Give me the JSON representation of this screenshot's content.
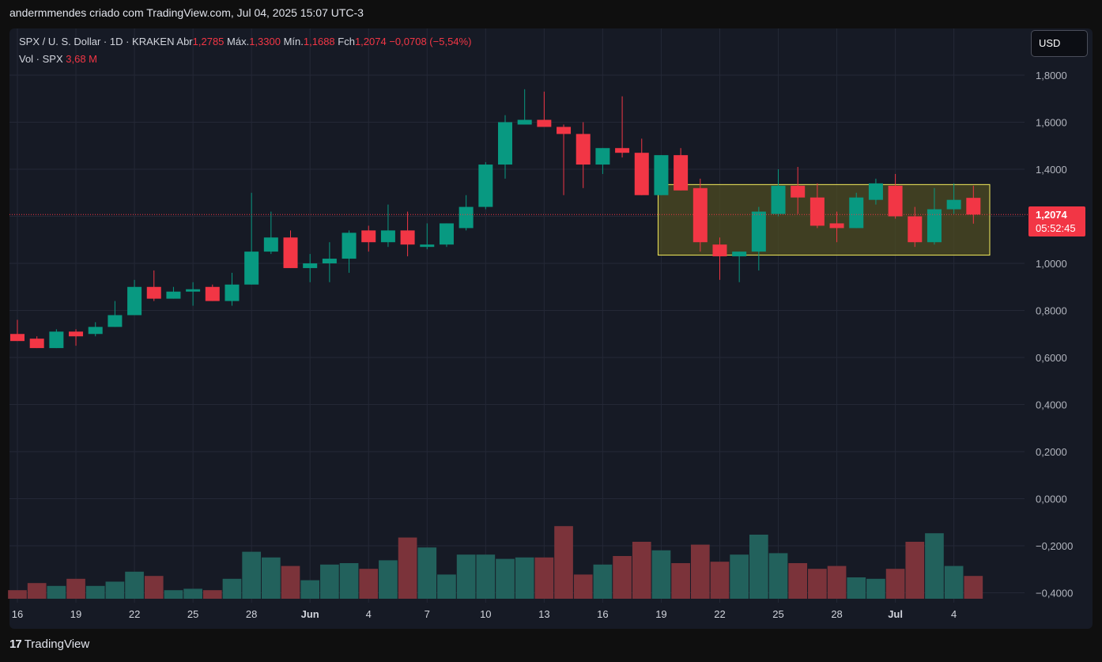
{
  "header": {
    "text": "andermmendes criado com TradingView.com, Jul 04, 2025 15:07 UTC-3"
  },
  "legend": {
    "symbol": "SPX / U. S. Dollar · 1D · KRAKEN",
    "open_label": "Abr",
    "open": "1,2785",
    "high_label": "Máx.",
    "high": "1,3300",
    "low_label": "Mín.",
    "low": "1,1688",
    "close_label": "Fch",
    "close": "1,2074",
    "change": "−0,0708 (−5,54%)",
    "vol_label": "Vol · SPX",
    "vol": "3,68 M"
  },
  "currency_button": "USD",
  "last_price": {
    "price": "1,2074",
    "countdown": "05:52:45"
  },
  "footer": {
    "logo": "17",
    "brand": "TradingView"
  },
  "colors": {
    "up": "#089981",
    "down": "#f23645",
    "vol_up": "#22615c",
    "vol_down": "#7b333a",
    "range_fill": "#4d4b22",
    "range_border": "#f5ed5c",
    "bg": "#161a25",
    "page": "#0f0f0f"
  },
  "chart_data": {
    "type": "candlestick",
    "x_tick_labels": [
      "16",
      "19",
      "22",
      "25",
      "28",
      "Jun",
      "4",
      "7",
      "10",
      "13",
      "16",
      "19",
      "22",
      "25",
      "28",
      "Jul",
      "4"
    ],
    "y_tick_labels": [
      "1,8000",
      "1,6000",
      "1,4000",
      "1,2000",
      "1,0000",
      "0,8000",
      "0,6000",
      "0,4000",
      "0,2000",
      "0,0000",
      "−0,2000",
      "−0,4000"
    ],
    "ylim": [
      -0.44,
      1.92
    ],
    "grid": true,
    "highlight_range": {
      "y_low": 1.035,
      "y_high": 1.335,
      "from_index": 33,
      "to_index": 50
    },
    "candles": [
      {
        "o": 0.7,
        "h": 0.76,
        "l": 0.67,
        "c": 0.67
      },
      {
        "o": 0.68,
        "h": 0.69,
        "l": 0.64,
        "c": 0.64
      },
      {
        "o": 0.64,
        "h": 0.72,
        "l": 0.64,
        "c": 0.71
      },
      {
        "o": 0.71,
        "h": 0.72,
        "l": 0.65,
        "c": 0.69
      },
      {
        "o": 0.7,
        "h": 0.75,
        "l": 0.69,
        "c": 0.73
      },
      {
        "o": 0.73,
        "h": 0.84,
        "l": 0.73,
        "c": 0.78
      },
      {
        "o": 0.78,
        "h": 0.93,
        "l": 0.78,
        "c": 0.9
      },
      {
        "o": 0.9,
        "h": 0.97,
        "l": 0.84,
        "c": 0.85
      },
      {
        "o": 0.85,
        "h": 0.9,
        "l": 0.85,
        "c": 0.88
      },
      {
        "o": 0.88,
        "h": 0.92,
        "l": 0.82,
        "c": 0.89
      },
      {
        "o": 0.9,
        "h": 0.91,
        "l": 0.84,
        "c": 0.84
      },
      {
        "o": 0.84,
        "h": 0.96,
        "l": 0.82,
        "c": 0.91
      },
      {
        "o": 0.91,
        "h": 1.3,
        "l": 0.91,
        "c": 1.05
      },
      {
        "o": 1.05,
        "h": 1.22,
        "l": 1.04,
        "c": 1.11
      },
      {
        "o": 1.11,
        "h": 1.14,
        "l": 0.98,
        "c": 0.98
      },
      {
        "o": 0.98,
        "h": 1.04,
        "l": 0.92,
        "c": 1.0
      },
      {
        "o": 1.0,
        "h": 1.09,
        "l": 0.92,
        "c": 1.02
      },
      {
        "o": 1.02,
        "h": 1.14,
        "l": 0.96,
        "c": 1.13
      },
      {
        "o": 1.14,
        "h": 1.16,
        "l": 1.05,
        "c": 1.09
      },
      {
        "o": 1.09,
        "h": 1.25,
        "l": 1.07,
        "c": 1.14
      },
      {
        "o": 1.14,
        "h": 1.22,
        "l": 1.03,
        "c": 1.08
      },
      {
        "o": 1.07,
        "h": 1.17,
        "l": 1.06,
        "c": 1.08
      },
      {
        "o": 1.08,
        "h": 1.17,
        "l": 1.07,
        "c": 1.17
      },
      {
        "o": 1.15,
        "h": 1.29,
        "l": 1.14,
        "c": 1.24
      },
      {
        "o": 1.24,
        "h": 1.43,
        "l": 1.23,
        "c": 1.42
      },
      {
        "o": 1.42,
        "h": 1.63,
        "l": 1.36,
        "c": 1.6
      },
      {
        "o": 1.59,
        "h": 1.74,
        "l": 1.59,
        "c": 1.61
      },
      {
        "o": 1.61,
        "h": 1.73,
        "l": 1.59,
        "c": 1.58
      },
      {
        "o": 1.58,
        "h": 1.59,
        "l": 1.29,
        "c": 1.55
      },
      {
        "o": 1.55,
        "h": 1.6,
        "l": 1.32,
        "c": 1.42
      },
      {
        "o": 1.42,
        "h": 1.49,
        "l": 1.38,
        "c": 1.49
      },
      {
        "o": 1.49,
        "h": 1.71,
        "l": 1.45,
        "c": 1.47
      },
      {
        "o": 1.47,
        "h": 1.53,
        "l": 1.29,
        "c": 1.29
      },
      {
        "o": 1.29,
        "h": 1.46,
        "l": 1.29,
        "c": 1.46
      },
      {
        "o": 1.46,
        "h": 1.49,
        "l": 1.31,
        "c": 1.31
      },
      {
        "o": 1.32,
        "h": 1.36,
        "l": 1.05,
        "c": 1.09
      },
      {
        "o": 1.08,
        "h": 1.11,
        "l": 0.93,
        "c": 1.03
      },
      {
        "o": 1.03,
        "h": 1.05,
        "l": 0.92,
        "c": 1.05
      },
      {
        "o": 1.05,
        "h": 1.24,
        "l": 0.97,
        "c": 1.22
      },
      {
        "o": 1.21,
        "h": 1.4,
        "l": 1.2,
        "c": 1.33
      },
      {
        "o": 1.33,
        "h": 1.41,
        "l": 1.21,
        "c": 1.28
      },
      {
        "o": 1.28,
        "h": 1.34,
        "l": 1.15,
        "c": 1.16
      },
      {
        "o": 1.17,
        "h": 1.22,
        "l": 1.09,
        "c": 1.15
      },
      {
        "o": 1.15,
        "h": 1.3,
        "l": 1.15,
        "c": 1.28
      },
      {
        "o": 1.27,
        "h": 1.36,
        "l": 1.25,
        "c": 1.34
      },
      {
        "o": 1.33,
        "h": 1.38,
        "l": 1.19,
        "c": 1.2
      },
      {
        "o": 1.2,
        "h": 1.24,
        "l": 1.07,
        "c": 1.09
      },
      {
        "o": 1.09,
        "h": 1.32,
        "l": 1.08,
        "c": 1.23
      },
      {
        "o": 1.23,
        "h": 1.34,
        "l": 1.21,
        "c": 1.27
      },
      {
        "o": 1.2785,
        "h": 1.33,
        "l": 1.1688,
        "c": 1.2074
      }
    ],
    "volume_values": [
      0.06,
      0.11,
      0.09,
      0.14,
      0.09,
      0.12,
      0.19,
      0.16,
      0.06,
      0.07,
      0.06,
      0.14,
      0.33,
      0.29,
      0.23,
      0.13,
      0.24,
      0.25,
      0.21,
      0.27,
      0.43,
      0.36,
      0.17,
      0.31,
      0.31,
      0.28,
      0.29,
      0.29,
      0.51,
      0.17,
      0.24,
      0.3,
      0.4,
      0.34,
      0.25,
      0.38,
      0.26,
      0.31,
      0.45,
      0.32,
      0.25,
      0.21,
      0.23,
      0.15,
      0.14,
      0.21,
      0.4,
      0.46,
      0.23,
      0.16
    ],
    "volume_unit": "relative (0–1)"
  }
}
